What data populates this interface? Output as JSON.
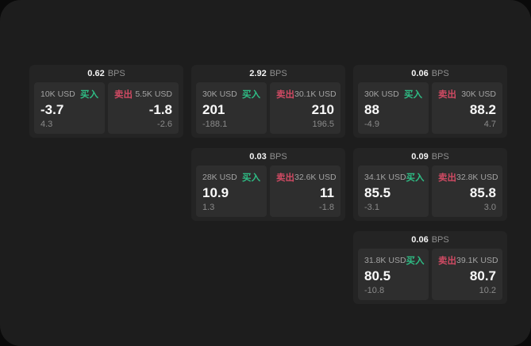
{
  "labels": {
    "bps_unit": "BPS",
    "buy": "买入",
    "sell": "卖出"
  },
  "colors": {
    "background": "#0a0a0a",
    "panel": "#1d1d1d",
    "card": "#242424",
    "tile": "#2e2e2e",
    "buy_green": "#2ebd85",
    "sell_red": "#cf4a63"
  },
  "cards": [
    {
      "bps": "0.62",
      "buy": {
        "notional": "10K USD",
        "price": "-3.7",
        "sub": "4.3"
      },
      "sell": {
        "notional": "5.5K USD",
        "price": "-1.8",
        "sub": "-2.6"
      }
    },
    {
      "bps": "2.92",
      "buy": {
        "notional": "30K USD",
        "price": "201",
        "sub": "-188.1"
      },
      "sell": {
        "notional": "30.1K USD",
        "price": "210",
        "sub": "196.5"
      }
    },
    {
      "bps": "0.06",
      "buy": {
        "notional": "30K USD",
        "price": "88",
        "sub": "-4.9"
      },
      "sell": {
        "notional": "30K USD",
        "price": "88.2",
        "sub": "4.7"
      }
    },
    {
      "bps": "0.03",
      "buy": {
        "notional": "28K USD",
        "price": "10.9",
        "sub": "1.3"
      },
      "sell": {
        "notional": "32.6K USD",
        "price": "11",
        "sub": "-1.8"
      }
    },
    {
      "bps": "0.09",
      "buy": {
        "notional": "34.1K USD",
        "price": "85.5",
        "sub": "-3.1"
      },
      "sell": {
        "notional": "32.8K USD",
        "price": "85.8",
        "sub": "3.0"
      }
    },
    {
      "bps": "0.06",
      "buy": {
        "notional": "31.8K USD",
        "price": "80.5",
        "sub": "-10.8"
      },
      "sell": {
        "notional": "39.1K USD",
        "price": "80.7",
        "sub": "10.2"
      }
    }
  ]
}
